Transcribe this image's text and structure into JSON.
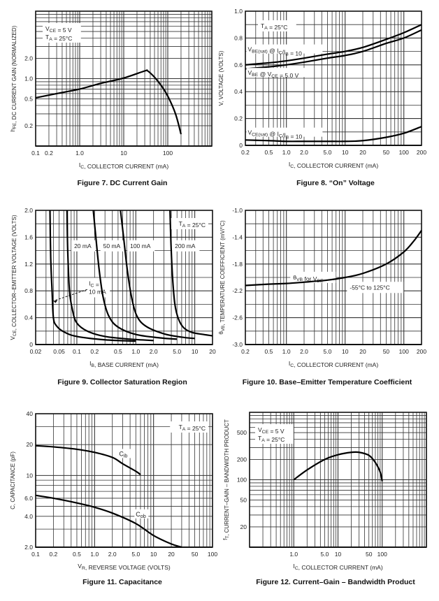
{
  "chart_data": [
    {
      "id": "fig7",
      "type": "line",
      "title": "Figure 7. DC Current Gain",
      "xlabel": "I_C, COLLECTOR CURRENT (mA)",
      "ylabel": "h_FE, DC CURRENT GAIN (NORMALIZED)",
      "xscale": "log",
      "yscale": "log",
      "xlim": [
        0.1,
        1000
      ],
      "ylim": [
        0.1,
        10
      ],
      "xticks": [
        {
          "v": 0.1,
          "label": "0.1"
        },
        {
          "v": 0.2,
          "label": "0.2"
        },
        {
          "v": 1,
          "label": "1.0"
        },
        {
          "v": 10,
          "label": "10"
        },
        {
          "v": 100,
          "label": "100"
        }
      ],
      "yticks": [
        {
          "v": 0.2,
          "label": "0.2"
        },
        {
          "v": 0.5,
          "label": "0.5"
        },
        {
          "v": 1,
          "label": "1.0"
        },
        {
          "v": 2,
          "label": "2.0"
        }
      ],
      "annotations": [
        {
          "lines": [
            "V_CE = 5 V",
            "T_A = 25°C"
          ],
          "position": "top-left"
        }
      ],
      "grid": true,
      "series": [
        {
          "name": "h_FE",
          "x": [
            0.1,
            0.3,
            1,
            3,
            10,
            30,
            35,
            50,
            70,
            100,
            150,
            200
          ],
          "y": [
            0.52,
            0.6,
            0.7,
            0.85,
            1.02,
            1.3,
            1.3,
            1.05,
            0.8,
            0.55,
            0.3,
            0.15
          ]
        }
      ]
    },
    {
      "id": "fig8",
      "type": "line",
      "title": "Figure 8. “On” Voltage",
      "xlabel": "I_C, COLLECTOR CURRENT (mA)",
      "ylabel": "V, VOLTAGE (VOLTS)",
      "xscale": "log",
      "yscale": "linear",
      "xlim": [
        0.2,
        200
      ],
      "ylim": [
        0,
        1.0
      ],
      "xticks": [
        {
          "v": 0.2,
          "label": "0.2"
        },
        {
          "v": 0.5,
          "label": "0.5"
        },
        {
          "v": 1,
          "label": "1.0"
        },
        {
          "v": 2,
          "label": "2.0"
        },
        {
          "v": 5,
          "label": "5.0"
        },
        {
          "v": 10,
          "label": "10"
        },
        {
          "v": 20,
          "label": "20"
        },
        {
          "v": 50,
          "label": "50"
        },
        {
          "v": 100,
          "label": "100"
        },
        {
          "v": 200,
          "label": "200"
        }
      ],
      "yticks": [
        {
          "v": 0,
          "label": "0"
        },
        {
          "v": 0.2,
          "label": "0.2"
        },
        {
          "v": 0.4,
          "label": "0.4"
        },
        {
          "v": 0.6,
          "label": "0.6"
        },
        {
          "v": 0.8,
          "label": "0.8"
        },
        {
          "v": 1.0,
          "label": "1.0"
        }
      ],
      "annotations": [
        {
          "lines": [
            "T_A = 25°C"
          ],
          "position": "top-left"
        }
      ],
      "grid": true,
      "series": [
        {
          "name": "V_BE(sat) @ I_C/I_B = 10",
          "x": [
            0.2,
            0.5,
            1,
            2,
            5,
            10,
            20,
            50,
            100,
            200
          ],
          "y": [
            0.6,
            0.615,
            0.63,
            0.65,
            0.68,
            0.7,
            0.73,
            0.79,
            0.84,
            0.9
          ]
        },
        {
          "name": "V_BE @ V_CE = 5.0 V",
          "x": [
            0.2,
            0.5,
            1,
            2,
            5,
            10,
            20,
            50,
            100,
            200
          ],
          "y": [
            0.57,
            0.585,
            0.6,
            0.62,
            0.65,
            0.67,
            0.7,
            0.76,
            0.8,
            0.86
          ]
        },
        {
          "name": "V_CE(sat) @ I_C/I_B = 10",
          "x": [
            0.2,
            0.5,
            1,
            2,
            5,
            10,
            20,
            50,
            100,
            200
          ],
          "y": [
            0.04,
            0.035,
            0.03,
            0.03,
            0.03,
            0.03,
            0.035,
            0.06,
            0.09,
            0.14
          ]
        }
      ]
    },
    {
      "id": "fig9",
      "type": "line",
      "title": "Figure 9. Collector Saturation Region",
      "xlabel": "I_B, BASE CURRENT (mA)",
      "ylabel": "V_CE, COLLECTOR–EMITTER VOLTAGE (VOLTS)",
      "xscale": "log",
      "yscale": "linear",
      "xlim": [
        0.02,
        20
      ],
      "ylim": [
        0,
        2.0
      ],
      "xticks": [
        {
          "v": 0.02,
          "label": "0.02"
        },
        {
          "v": 0.05,
          "label": "0.05"
        },
        {
          "v": 0.1,
          "label": "0.1"
        },
        {
          "v": 0.2,
          "label": "0.2"
        },
        {
          "v": 0.5,
          "label": "0.5"
        },
        {
          "v": 1,
          "label": "1.0"
        },
        {
          "v": 2,
          "label": "2.0"
        },
        {
          "v": 5,
          "label": "5.0"
        },
        {
          "v": 10,
          "label": "10"
        },
        {
          "v": 20,
          "label": "20"
        }
      ],
      "yticks": [
        {
          "v": 0,
          "label": "0"
        },
        {
          "v": 0.4,
          "label": "0.4"
        },
        {
          "v": 0.8,
          "label": "0.8"
        },
        {
          "v": 1.2,
          "label": "1.2"
        },
        {
          "v": 1.6,
          "label": "1.6"
        },
        {
          "v": 2.0,
          "label": "2.0"
        }
      ],
      "annotations": [
        {
          "lines": [
            "T_A = 25°C"
          ],
          "position": "top-right"
        },
        {
          "lines": [
            "I_C =",
            "10 mA"
          ],
          "position": "left-middle"
        },
        {
          "lines": [
            "20 mA"
          ]
        },
        {
          "lines": [
            "50 mA"
          ]
        },
        {
          "lines": [
            "100 mA"
          ]
        },
        {
          "lines": [
            "200 mA"
          ]
        }
      ],
      "grid": true,
      "series": [
        {
          "name": "I_C = 10 mA",
          "x": [
            0.035,
            0.036,
            0.038,
            0.04,
            0.045,
            0.06,
            0.1,
            0.3,
            1.0
          ],
          "y": [
            2.0,
            1.3,
            0.8,
            0.4,
            0.28,
            0.19,
            0.12,
            0.07,
            0.05
          ]
        },
        {
          "name": "20 mA",
          "x": [
            0.068,
            0.07,
            0.075,
            0.085,
            0.1,
            0.15,
            0.3,
            0.8,
            2.0
          ],
          "y": [
            2.0,
            1.4,
            0.8,
            0.5,
            0.32,
            0.2,
            0.12,
            0.08,
            0.06
          ]
        },
        {
          "name": "50 mA",
          "x": [
            0.19,
            0.21,
            0.24,
            0.28,
            0.35,
            0.5,
            1.0,
            2.5,
            5.0
          ],
          "y": [
            2.0,
            1.6,
            1.1,
            0.7,
            0.42,
            0.26,
            0.15,
            0.1,
            0.08
          ]
        },
        {
          "name": "100 mA",
          "x": [
            0.55,
            0.62,
            0.72,
            0.85,
            1.05,
            1.5,
            3.0,
            6.0,
            10
          ],
          "y": [
            2.0,
            1.6,
            1.1,
            0.7,
            0.42,
            0.27,
            0.16,
            0.11,
            0.09
          ]
        },
        {
          "name": "200 mA",
          "x": [
            3.8,
            3.95,
            4.2,
            4.6,
            5.3,
            6.5,
            9.0,
            14,
            20
          ],
          "y": [
            2.0,
            1.5,
            1.0,
            0.6,
            0.38,
            0.25,
            0.18,
            0.15,
            0.13
          ]
        }
      ]
    },
    {
      "id": "fig10",
      "type": "line",
      "title": "Figure 10. Base–Emitter Temperature Coefficient",
      "xlabel": "I_C, COLLECTOR CURRENT (mA)",
      "ylabel": "θ_VB, TEMPERATURE COEFFICIENT (mV/°C)",
      "xscale": "log",
      "yscale": "linear",
      "xlim": [
        0.2,
        200
      ],
      "ylim": [
        -3.0,
        -1.0
      ],
      "xticks": [
        {
          "v": 0.2,
          "label": "0.2"
        },
        {
          "v": 0.5,
          "label": "0.5"
        },
        {
          "v": 1,
          "label": "1.0"
        },
        {
          "v": 2,
          "label": "2.0"
        },
        {
          "v": 5,
          "label": "5.0"
        },
        {
          "v": 10,
          "label": "10"
        },
        {
          "v": 20,
          "label": "20"
        },
        {
          "v": 50,
          "label": "50"
        },
        {
          "v": 100,
          "label": "100"
        },
        {
          "v": 200,
          "label": "200"
        }
      ],
      "yticks": [
        {
          "v": -3.0,
          "label": "-3.0"
        },
        {
          "v": -2.6,
          "label": "-2.6"
        },
        {
          "v": -2.2,
          "label": "-2.2"
        },
        {
          "v": -1.8,
          "label": "-1.8"
        },
        {
          "v": -1.4,
          "label": "-1.4"
        },
        {
          "v": -1.0,
          "label": "-1.0"
        }
      ],
      "annotations": [
        {
          "lines": [
            "θ_VB for V_BE"
          ]
        },
        {
          "lines": [
            "-55°C to 125°C"
          ]
        }
      ],
      "grid": true,
      "series": [
        {
          "name": "θ_VB for V_BE",
          "x": [
            0.2,
            0.5,
            1,
            2,
            5,
            10,
            20,
            50,
            100,
            150,
            200
          ],
          "y": [
            -2.12,
            -2.1,
            -2.09,
            -2.07,
            -2.04,
            -2.0,
            -1.94,
            -1.8,
            -1.62,
            -1.45,
            -1.3
          ]
        }
      ]
    },
    {
      "id": "fig11",
      "type": "line",
      "title": "Figure 11. Capacitance",
      "xlabel": "V_R, REVERSE VOLTAGE (VOLTS)",
      "ylabel": "C, CAPACITANCE (pF)",
      "xscale": "log",
      "yscale": "log",
      "xlim": [
        0.1,
        100
      ],
      "ylim": [
        2.0,
        40
      ],
      "xticks": [
        {
          "v": 0.1,
          "label": "0.1"
        },
        {
          "v": 0.2,
          "label": "0.2"
        },
        {
          "v": 0.5,
          "label": "0.5"
        },
        {
          "v": 1,
          "label": "1.0"
        },
        {
          "v": 2,
          "label": "2.0"
        },
        {
          "v": 5,
          "label": "5.0"
        },
        {
          "v": 10,
          "label": "10"
        },
        {
          "v": 20,
          "label": "20"
        },
        {
          "v": 50,
          "label": "50"
        },
        {
          "v": 100,
          "label": "100"
        }
      ],
      "yticks": [
        {
          "v": 2,
          "label": "2.0"
        },
        {
          "v": 4,
          "label": "4.0"
        },
        {
          "v": 6,
          "label": "6.0"
        },
        {
          "v": 10,
          "label": "10"
        },
        {
          "v": 20,
          "label": "20"
        },
        {
          "v": 40,
          "label": "40"
        }
      ],
      "annotations": [
        {
          "lines": [
            "T_A = 25°C"
          ],
          "position": "top-right"
        }
      ],
      "grid": true,
      "series": [
        {
          "name": "C_ib",
          "x": [
            0.1,
            0.2,
            0.5,
            1,
            2,
            3,
            5,
            6
          ],
          "y": [
            19.5,
            19,
            18,
            16.8,
            15,
            13,
            11,
            10.2
          ]
        },
        {
          "name": "C_ob",
          "x": [
            0.1,
            0.2,
            0.5,
            1,
            2,
            5,
            10,
            20,
            30
          ],
          "y": [
            6.4,
            6.0,
            5.4,
            4.9,
            4.3,
            3.4,
            2.6,
            2.15,
            2.0
          ]
        }
      ]
    },
    {
      "id": "fig12",
      "type": "line",
      "title": "Figure 12. Current–Gain – Bandwidth Product",
      "xlabel": "I_C, COLLECTOR CURRENT (mA)",
      "ylabel": "f_T, CURRENT–GAIN – BANDWIDTH PRODUCT",
      "xscale": "log",
      "yscale": "log",
      "xlim": [
        0.1,
        1000
      ],
      "ylim": [
        10,
        1000
      ],
      "xticks": [
        {
          "v": 1,
          "label": "1.0"
        },
        {
          "v": 5,
          "label": "5.0"
        },
        {
          "v": 10,
          "label": "10"
        },
        {
          "v": 50,
          "label": "50"
        },
        {
          "v": 100,
          "label": "100"
        }
      ],
      "yticks": [
        {
          "v": 20,
          "label": "20"
        },
        {
          "v": 50,
          "label": "50"
        },
        {
          "v": 100,
          "label": "100"
        },
        {
          "v": 200,
          "label": "200"
        },
        {
          "v": 500,
          "label": "500"
        }
      ],
      "annotations": [
        {
          "lines": [
            "V_CE = 5 V",
            "T_A = 25°C"
          ],
          "position": "top-left"
        }
      ],
      "grid": true,
      "series": [
        {
          "name": "f_T",
          "x": [
            1,
            2,
            5,
            10,
            20,
            30,
            50,
            70,
            90,
            100
          ],
          "y": [
            100,
            140,
            200,
            235,
            255,
            255,
            230,
            180,
            130,
            95
          ]
        }
      ]
    }
  ]
}
